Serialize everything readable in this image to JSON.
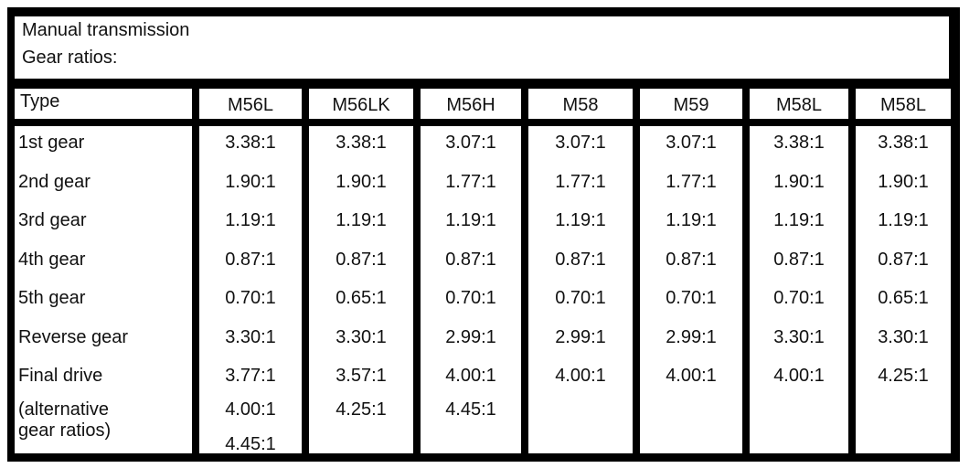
{
  "header": {
    "title": "Manual transmission",
    "subtitle": "Gear ratios:"
  },
  "table": {
    "columns": [
      "Type",
      "M56L",
      "M56LK",
      "M56H",
      "M58",
      "M59",
      "M58L",
      "M58L"
    ],
    "rows": [
      [
        "1st gear",
        "3.38:1",
        "3.38:1",
        "3.07:1",
        "3.07:1",
        "3.07:1",
        "3.38:1",
        "3.38:1"
      ],
      [
        "2nd gear",
        "1.90:1",
        "1.90:1",
        "1.77:1",
        "1.77:1",
        "1.77:1",
        "1.90:1",
        "1.90:1"
      ],
      [
        "3rd gear",
        "1.19:1",
        "1.19:1",
        "1.19:1",
        "1.19:1",
        "1.19:1",
        "1.19:1",
        "1.19:1"
      ],
      [
        "4th gear",
        "0.87:1",
        "0.87:1",
        "0.87:1",
        "0.87:1",
        "0.87:1",
        "0.87:1",
        "0.87:1"
      ],
      [
        "5th gear",
        "0.70:1",
        "0.65:1",
        "0.70:1",
        "0.70:1",
        "0.70:1",
        "0.70:1",
        "0.65:1"
      ],
      [
        "Reverse gear",
        "3.30:1",
        "3.30:1",
        "2.99:1",
        "2.99:1",
        "2.99:1",
        "3.30:1",
        "3.30:1"
      ],
      [
        "Final drive",
        "3.77:1",
        "3.57:1",
        "4.00:1",
        "4.00:1",
        "4.00:1",
        "4.00:1",
        "4.25:1"
      ]
    ],
    "alternative": {
      "label": [
        "(alternative",
        "gear ratios)"
      ],
      "values": [
        [
          "4.00:1",
          "4.45:1"
        ],
        [
          "4.25:1"
        ],
        [
          "4.45:1"
        ],
        [],
        [],
        [],
        []
      ]
    }
  }
}
